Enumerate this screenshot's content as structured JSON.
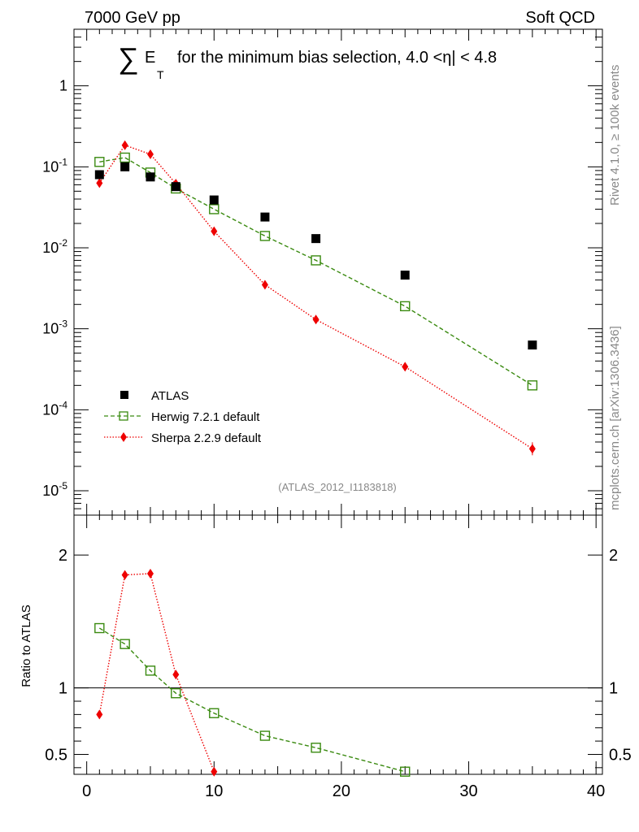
{
  "header": {
    "left": "7000 GeV pp",
    "right": "Soft QCD"
  },
  "title": {
    "sum_symbol": "∑",
    "var": "E",
    "sub": "T",
    "text": "for the minimum bias selection, 4.0 <η| < 4.8"
  },
  "side_labels": {
    "rivet": "Rivet 4.1.0, ≥ 100k events",
    "mcplots": "mcplots.cern.ch [arXiv:1306.3436]"
  },
  "analysis_tag": "(ATLAS_2012_I1183818)",
  "legend": {
    "atlas": "ATLAS",
    "herwig": "Herwig 7.2.1 default",
    "sherpa": "Sherpa 2.2.9 default"
  },
  "ratio_ylabel": "Ratio to ATLAS",
  "colors": {
    "atlas": "#000000",
    "herwig": "#3a8a10",
    "sherpa": "#ee0000"
  },
  "chart_data": [
    {
      "type": "scatter",
      "panel": "main",
      "yscale": "log",
      "xlim": [
        -1,
        40.5
      ],
      "ylim": [
        5e-06,
        5
      ],
      "y_tick_labels": [
        "10^-5",
        "10^-4",
        "10^-3",
        "10^-2",
        "10^-1",
        "1"
      ],
      "y_tick_values": [
        1e-05,
        0.0001,
        0.001,
        0.01,
        0.1,
        1
      ],
      "series": [
        {
          "name": "ATLAS",
          "x": [
            1,
            3,
            5,
            7,
            10,
            14,
            18,
            25,
            35
          ],
          "y": [
            0.08,
            0.1,
            0.075,
            0.057,
            0.039,
            0.024,
            0.013,
            0.0046,
            0.00063
          ]
        },
        {
          "name": "Herwig 7.2.1 default",
          "x": [
            1,
            3,
            5,
            7,
            10,
            14,
            18,
            25,
            35
          ],
          "y": [
            0.115,
            0.13,
            0.085,
            0.054,
            0.03,
            0.014,
            0.007,
            0.0019,
            0.0002
          ]
        },
        {
          "name": "Sherpa 2.2.9 default",
          "x": [
            1,
            3,
            5,
            7,
            10,
            14,
            18,
            25,
            35
          ],
          "y": [
            0.063,
            0.185,
            0.143,
            0.062,
            0.016,
            0.0035,
            0.0013,
            0.00034,
            3.3e-05
          ]
        }
      ]
    },
    {
      "type": "line",
      "panel": "ratio",
      "ylabel": "Ratio to ATLAS",
      "xlim": [
        -1,
        40.5
      ],
      "ylim": [
        0.35,
        2.3
      ],
      "x_tick_labels": [
        "0",
        "10",
        "20",
        "30",
        "40"
      ],
      "x_tick_values": [
        0,
        10,
        20,
        30,
        40
      ],
      "y_tick_labels": [
        "0.5",
        "1",
        "2"
      ],
      "y_tick_values": [
        0.5,
        1,
        2
      ],
      "reference_line": 1,
      "series": [
        {
          "name": "Herwig 7.2.1 default",
          "x": [
            1,
            3,
            5,
            7,
            10,
            14,
            18,
            25
          ],
          "y": [
            1.45,
            1.33,
            1.13,
            0.96,
            0.81,
            0.64,
            0.55,
            0.37
          ]
        },
        {
          "name": "Sherpa 2.2.9 default",
          "x": [
            1,
            3,
            5,
            7,
            10
          ],
          "y": [
            0.8,
            1.85,
            1.86,
            1.1,
            0.37
          ]
        }
      ]
    }
  ]
}
